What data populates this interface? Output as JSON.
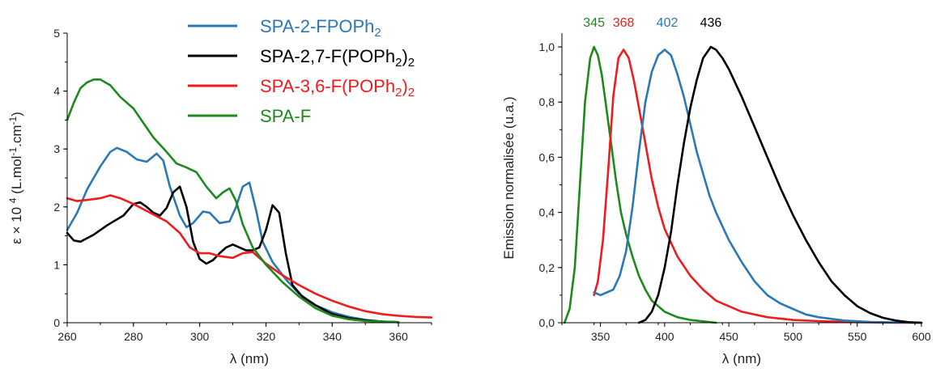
{
  "chart_data": [
    {
      "type": "line",
      "xlabel": "λ (nm)",
      "ylabel": "ε × 10 4 (L.mol-1.cm-1)",
      "xlim": [
        260,
        370
      ],
      "ylim": [
        0,
        5
      ],
      "xticks": [
        260,
        280,
        300,
        320,
        340,
        360
      ],
      "yticks": [
        0,
        1,
        2,
        3,
        4,
        5
      ],
      "grid": false,
      "legend_position": "top-center",
      "series": [
        {
          "name": "SPA-2-FPOPh2",
          "legend_main": "SPA-2-FPOPh",
          "legend_sub": "2",
          "legend_tail": "",
          "color": "#2a78b5",
          "x": [
            260,
            263,
            266,
            270,
            273,
            275,
            278,
            281,
            284,
            287,
            289,
            291,
            294,
            296,
            298,
            301,
            303,
            306,
            309,
            311,
            313,
            315,
            317,
            319,
            322,
            326,
            330,
            335,
            340,
            345,
            350,
            355,
            360
          ],
          "y": [
            1.6,
            1.9,
            2.3,
            2.7,
            2.95,
            3.02,
            2.95,
            2.82,
            2.78,
            2.92,
            2.8,
            2.35,
            1.85,
            1.65,
            1.72,
            1.92,
            1.9,
            1.72,
            1.75,
            2.0,
            2.35,
            2.42,
            1.95,
            1.4,
            1.05,
            0.75,
            0.5,
            0.3,
            0.18,
            0.1,
            0.05,
            0.02,
            0.01
          ]
        },
        {
          "name": "SPA-2,7-F(POPh2)2",
          "legend_main": "SPA-2,7-F(POPh",
          "legend_sub": "2",
          "legend_tail": ")2",
          "color": "#000000",
          "x": [
            260,
            262,
            264,
            266,
            268,
            270,
            272,
            274,
            277,
            280,
            282,
            284,
            286,
            288,
            290,
            292,
            294,
            296,
            298,
            300,
            302,
            304,
            306,
            308,
            310,
            312,
            314,
            316,
            318,
            320,
            322,
            324,
            326,
            328,
            331,
            335,
            340,
            345,
            350,
            355,
            360
          ],
          "y": [
            1.55,
            1.42,
            1.4,
            1.46,
            1.52,
            1.6,
            1.68,
            1.75,
            1.85,
            2.05,
            2.08,
            2.0,
            1.9,
            1.85,
            1.98,
            2.25,
            2.35,
            2.0,
            1.4,
            1.1,
            1.02,
            1.08,
            1.2,
            1.3,
            1.35,
            1.3,
            1.25,
            1.25,
            1.3,
            1.6,
            2.03,
            1.9,
            1.2,
            0.65,
            0.45,
            0.3,
            0.15,
            0.08,
            0.04,
            0.02,
            0.01
          ]
        },
        {
          "name": "SPA-3,6-F(POPh2)2",
          "legend_main": "SPA-3,6-F(POPh",
          "legend_sub": "2",
          "legend_tail": ")2",
          "color": "#ee1c1c",
          "x": [
            260,
            263,
            266,
            270,
            273,
            276,
            280,
            285,
            290,
            294,
            297,
            300,
            303,
            306,
            310,
            313,
            316,
            320,
            325,
            330,
            335,
            340,
            345,
            350,
            355,
            360,
            365,
            370
          ],
          "y": [
            2.15,
            2.1,
            2.12,
            2.15,
            2.2,
            2.15,
            2.05,
            1.9,
            1.75,
            1.55,
            1.3,
            1.2,
            1.2,
            1.15,
            1.12,
            1.2,
            1.22,
            1.02,
            0.82,
            0.65,
            0.5,
            0.38,
            0.28,
            0.2,
            0.15,
            0.12,
            0.1,
            0.09
          ]
        },
        {
          "name": "SPA-F",
          "legend_main": "SPA-F",
          "legend_sub": "",
          "legend_tail": "",
          "color": "#1c8a1c",
          "x": [
            260,
            262,
            264,
            266,
            268,
            270,
            273,
            276,
            280,
            283,
            286,
            290,
            293,
            296,
            299,
            302,
            305,
            307,
            309,
            311,
            313,
            316,
            320,
            325,
            330,
            335,
            340,
            345,
            350,
            355,
            360
          ],
          "y": [
            3.5,
            3.8,
            4.05,
            4.15,
            4.2,
            4.2,
            4.1,
            3.9,
            3.7,
            3.45,
            3.2,
            2.95,
            2.75,
            2.68,
            2.6,
            2.35,
            2.15,
            2.25,
            2.32,
            2.1,
            1.7,
            1.3,
            1.0,
            0.7,
            0.45,
            0.25,
            0.12,
            0.06,
            0.03,
            0.02,
            0.01
          ]
        }
      ]
    },
    {
      "type": "line",
      "xlabel": "λ (nm)",
      "ylabel": "Emission normalisée (u.a.)",
      "xlim": [
        320,
        600
      ],
      "ylim": [
        0,
        1.05
      ],
      "xticks": [
        350,
        400,
        450,
        500,
        550,
        600
      ],
      "yticks": [
        0,
        0.2,
        0.4,
        0.6,
        0.8,
        1.0
      ],
      "ytick_labels": [
        "0,0",
        "0,2",
        "0,4",
        "0,6",
        "0,8",
        "1,0"
      ],
      "grid": false,
      "peak_labels": [
        {
          "x": 345,
          "label": "345",
          "color": "#1c8a1c"
        },
        {
          "x": 368,
          "label": "368",
          "color": "#ee1c1c"
        },
        {
          "x": 402,
          "label": "402",
          "color": "#2a78b5"
        },
        {
          "x": 436,
          "label": "436",
          "color": "#000000"
        }
      ],
      "series": [
        {
          "name": "",
          "color": "#1c8a1c",
          "x": [
            322,
            326,
            330,
            334,
            338,
            342,
            345,
            348,
            351,
            354,
            358,
            362,
            366,
            370,
            375,
            380,
            385,
            390,
            395,
            400,
            410,
            420,
            430,
            440
          ],
          "y": [
            0.0,
            0.05,
            0.2,
            0.5,
            0.8,
            0.96,
            1.0,
            0.97,
            0.9,
            0.8,
            0.66,
            0.52,
            0.4,
            0.32,
            0.24,
            0.17,
            0.12,
            0.08,
            0.06,
            0.04,
            0.02,
            0.01,
            0.005,
            0.0
          ]
        },
        {
          "name": "",
          "color": "#ee1c1c",
          "x": [
            345,
            348,
            352,
            356,
            360,
            364,
            368,
            372,
            376,
            380,
            385,
            390,
            395,
            400,
            410,
            420,
            430,
            440,
            460,
            480,
            500,
            520,
            550,
            580,
            600
          ],
          "y": [
            0.1,
            0.15,
            0.3,
            0.55,
            0.82,
            0.96,
            0.99,
            0.96,
            0.88,
            0.78,
            0.65,
            0.52,
            0.42,
            0.34,
            0.24,
            0.17,
            0.12,
            0.08,
            0.04,
            0.02,
            0.01,
            0.006,
            0.002,
            0.0,
            0.0
          ]
        },
        {
          "name": "",
          "color": "#2a78b5",
          "x": [
            345,
            350,
            355,
            360,
            365,
            370,
            375,
            380,
            385,
            390,
            395,
            400,
            405,
            410,
            415,
            420,
            425,
            430,
            435,
            440,
            450,
            460,
            470,
            480,
            490,
            500,
            510,
            520,
            540,
            560,
            580,
            600
          ],
          "y": [
            0.11,
            0.1,
            0.11,
            0.12,
            0.17,
            0.26,
            0.42,
            0.62,
            0.8,
            0.91,
            0.97,
            0.99,
            0.97,
            0.9,
            0.82,
            0.72,
            0.62,
            0.54,
            0.46,
            0.4,
            0.3,
            0.22,
            0.15,
            0.1,
            0.07,
            0.05,
            0.03,
            0.02,
            0.008,
            0.003,
            0.001,
            0.0
          ]
        },
        {
          "name": "",
          "color": "#000000",
          "x": [
            380,
            385,
            390,
            395,
            400,
            405,
            410,
            415,
            420,
            425,
            430,
            436,
            440,
            445,
            450,
            460,
            470,
            480,
            490,
            500,
            510,
            520,
            530,
            540,
            550,
            560,
            570,
            580,
            590,
            600
          ],
          "y": [
            0.0,
            0.01,
            0.04,
            0.1,
            0.2,
            0.33,
            0.5,
            0.65,
            0.78,
            0.88,
            0.96,
            1.0,
            0.99,
            0.96,
            0.92,
            0.82,
            0.71,
            0.6,
            0.49,
            0.39,
            0.3,
            0.22,
            0.15,
            0.1,
            0.06,
            0.035,
            0.018,
            0.008,
            0.002,
            0.0
          ]
        }
      ]
    }
  ]
}
